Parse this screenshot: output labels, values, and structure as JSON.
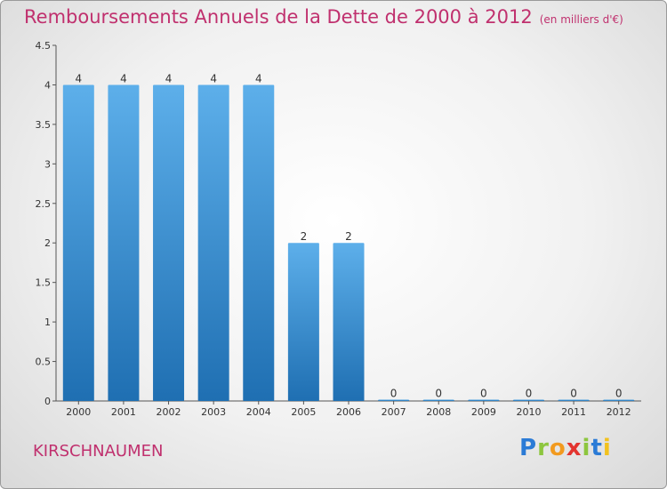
{
  "header": {
    "title": "Remboursements Annuels de la Dette de 2000 à 2012",
    "subtitle": "(en milliers d'€)"
  },
  "footer": {
    "commune": "KIRSCHNAUMEN",
    "logo_letters": [
      "P",
      "r",
      "o",
      "x",
      "i",
      "t",
      "i"
    ]
  },
  "colors": {
    "title": "#c0306e",
    "bar_top": "#5dafea",
    "bar_bottom": "#1f6fb2"
  },
  "chart_data": {
    "type": "bar",
    "categories": [
      "2000",
      "2001",
      "2002",
      "2003",
      "2004",
      "2005",
      "2006",
      "2007",
      "2008",
      "2009",
      "2010",
      "2011",
      "2012"
    ],
    "values": [
      4,
      4,
      4,
      4,
      4,
      2,
      2,
      0,
      0,
      0,
      0,
      0,
      0
    ],
    "data_labels": [
      "4",
      "4",
      "4",
      "4",
      "4",
      "2",
      "2",
      "0",
      "0",
      "0",
      "0",
      "0",
      "0"
    ],
    "title": "Remboursements Annuels de la Dette de 2000 à 2012",
    "xlabel": "",
    "ylabel": "",
    "ylim": [
      0,
      4.5
    ],
    "yticks": [
      "0",
      "0.5",
      "1",
      "1.5",
      "2",
      "2.5",
      "3",
      "3.5",
      "4",
      "4.5"
    ],
    "grid": false,
    "legend": "none"
  }
}
